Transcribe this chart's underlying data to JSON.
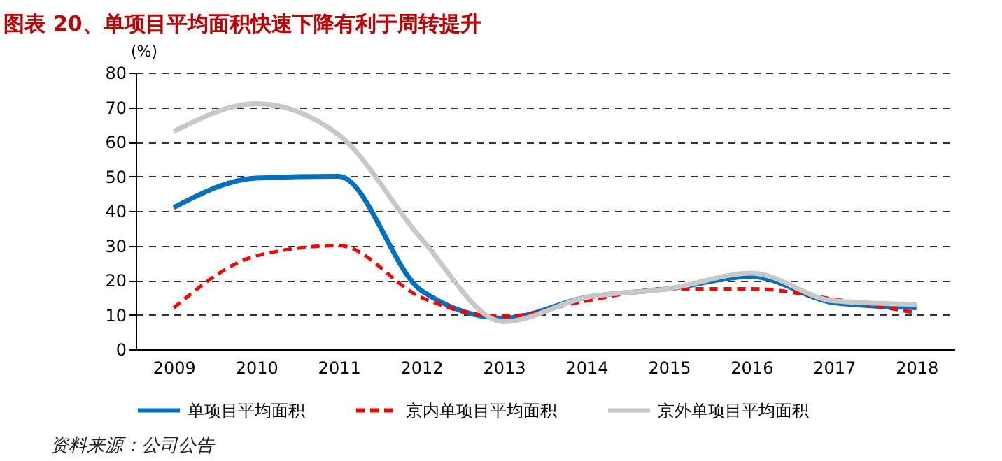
{
  "chart_data": {
    "type": "line",
    "title": "图表 20、单项目平均面积快速下降有利于周转提升",
    "ylabel": "(%)",
    "categories": [
      "2009",
      "2010",
      "2011",
      "2012",
      "2013",
      "2014",
      "2015",
      "2016",
      "2017",
      "2018"
    ],
    "series": [
      {
        "name": "单项目平均面积",
        "color": "#0070c0",
        "line_style": "solid",
        "values": [
          41,
          49.5,
          50,
          17,
          9,
          15,
          17.5,
          21,
          13.5,
          12
        ]
      },
      {
        "name": "京内单项目平均面积",
        "color": "#ff0000",
        "line_style": "dashed",
        "values": [
          12,
          27,
          30,
          15,
          9.5,
          14,
          17.5,
          17.5,
          14.5,
          10.5
        ]
      },
      {
        "name": "京外单项目平均面积",
        "color": "#c8c8c8",
        "line_style": "solid",
        "values": [
          63,
          71,
          62,
          32,
          8,
          15,
          17.5,
          22,
          14,
          13
        ]
      }
    ],
    "ylim": [
      0,
      80
    ],
    "yticks": [
      0,
      10,
      20,
      30,
      40,
      50,
      60,
      70,
      80
    ],
    "grid": "y",
    "legend": "bottom",
    "marker": "none",
    "annotations": [
      "资料来源：公司公告"
    ]
  }
}
